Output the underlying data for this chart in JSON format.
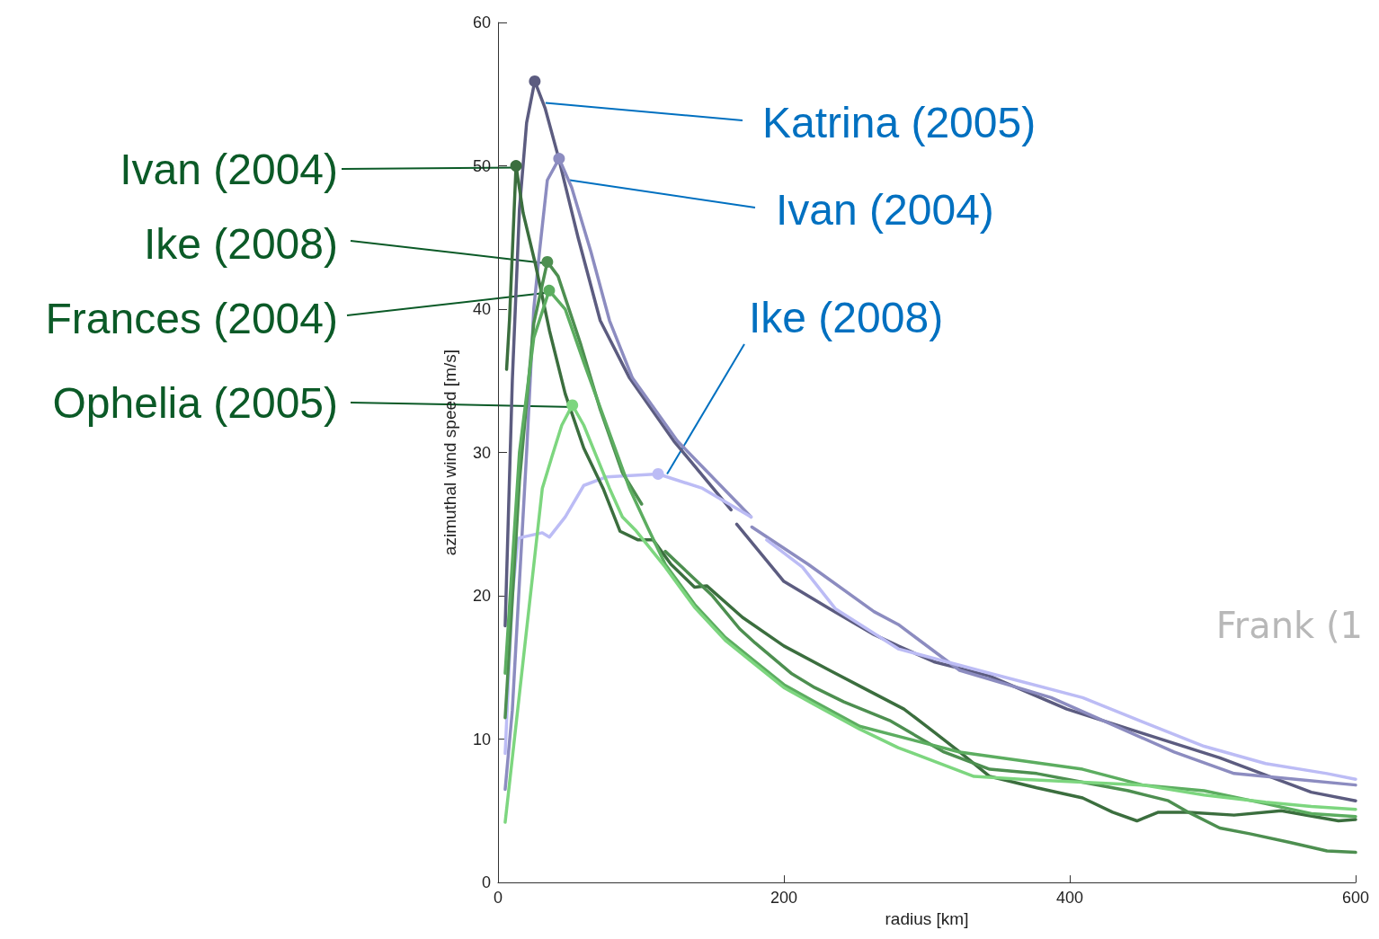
{
  "chart_data": {
    "type": "line",
    "xlabel": "radius [km]",
    "ylabel": "azimuthal wind speed [m/s]",
    "xlim": [
      0,
      600
    ],
    "xticks": [
      0,
      200,
      400,
      600
    ],
    "ylim": [
      0,
      60
    ],
    "yticks": [
      0,
      10,
      20,
      30,
      40,
      50,
      60
    ],
    "grid": false,
    "legend": false,
    "line_style": "solid",
    "annotations": [
      "Frank (1"
    ],
    "series": [
      {
        "name": "Katrina (2005)",
        "color": "#5c5c80",
        "x": [
          5,
          10,
          15,
          20,
          25.7,
          33,
          42,
          56,
          71.5,
          92,
          123,
          163,
          null,
          167,
          200,
          232,
          263,
          280,
          305,
          344,
          398,
          451,
          505,
          569,
          600
        ],
        "values": [
          17.9,
          35,
          47,
          53,
          55.9,
          54,
          50.7,
          45,
          39.2,
          35.2,
          30.8,
          26,
          null,
          25,
          21,
          19.1,
          17.3,
          16.5,
          15.4,
          14.4,
          12.1,
          10.4,
          8.7,
          6.3,
          5.7
        ]
      },
      {
        "name": "Ivan (2004)",
        "color": "#8c8cc0",
        "x": [
          5,
          10,
          20,
          25,
          29,
          34.5,
          42.7,
          51.5,
          65,
          78,
          94,
          125.5,
          177,
          null,
          177.6,
          217,
          263,
          280,
          323,
          387,
          430,
          473,
          515,
          558,
          600
        ],
        "values": [
          6.5,
          12,
          30,
          40,
          44,
          49,
          50.5,
          48.5,
          44,
          39.2,
          35.2,
          30.8,
          25.5,
          null,
          24.8,
          22.2,
          18.9,
          18,
          14.8,
          12.9,
          11,
          9.1,
          7.6,
          7.2,
          6.8
        ]
      },
      {
        "name": "Ike (2008)",
        "color": "#bcbcf5",
        "x": [
          5,
          10,
          14,
          17.6,
          31,
          36,
          47,
          60,
          76,
          112,
          143,
          177,
          null,
          188,
          213,
          236,
          280,
          344,
          409,
          451,
          494,
          537,
          580,
          600
        ],
        "values": [
          9,
          20,
          24,
          24.1,
          24.4,
          24.1,
          25.5,
          27.7,
          28.3,
          28.5,
          27.5,
          25.5,
          null,
          23.9,
          22,
          19.1,
          16.3,
          14.6,
          12.9,
          11.2,
          9.5,
          8.3,
          7.6,
          7.2
        ]
      },
      {
        "name": "Ivan (2004)",
        "color": "#3b6e3e",
        "x": [
          6,
          8,
          12.6,
          17.6,
          26,
          36,
          47,
          60,
          73.5,
          85.4,
          98,
          108.5,
          121,
          137.5,
          146,
          171,
          200,
          232,
          255,
          284,
          305,
          323,
          344,
          377,
          409,
          430,
          447,
          462,
          483,
          515,
          548,
          588,
          600
        ],
        "values": [
          35.8,
          39.2,
          50,
          46.7,
          43.2,
          38.5,
          34.1,
          30.3,
          27.5,
          24.5,
          23.9,
          23.9,
          22.2,
          20.6,
          20.7,
          18.5,
          16.5,
          14.8,
          13.6,
          12.1,
          10.5,
          9.1,
          7.4,
          6.6,
          5.9,
          4.9,
          4.3,
          4.9,
          4.9,
          4.7,
          5,
          4.3,
          4.4
        ]
      },
      {
        "name": "Ike (2008)",
        "color": "#4d8f50",
        "x": [
          5,
          15,
          25,
          34.5,
          42,
          58,
          71.5,
          87,
          100.5,
          null,
          117,
          150,
          169,
          180,
          205,
          221.5,
          242,
          274,
          312,
          344,
          377,
          409,
          441,
          469,
          483,
          505,
          526,
          554,
          580,
          600
        ],
        "values": [
          11.5,
          28,
          39,
          43.3,
          42.3,
          37.5,
          33,
          28.6,
          26.4,
          null,
          23.1,
          20,
          17.7,
          16.7,
          14.6,
          13.6,
          12.6,
          11.3,
          9.1,
          7.9,
          7.6,
          7,
          6.4,
          5.7,
          4.9,
          3.8,
          3.4,
          2.8,
          2.2,
          2.1
        ]
      },
      {
        "name": "Frances (2004)",
        "color": "#5cad60",
        "x": [
          5,
          15,
          25,
          35.8,
          47,
          60,
          76,
          92,
          105,
          117,
          137.5,
          159,
          180,
          200,
          221.5,
          253,
          280,
          323,
          366,
          409,
          451,
          494,
          537,
          569,
          600
        ],
        "values": [
          14.6,
          30,
          38,
          41.3,
          40,
          36.3,
          31.9,
          27.5,
          24.7,
          22.2,
          19.4,
          17.1,
          15.4,
          13.8,
          12.6,
          10.9,
          10.2,
          9.1,
          8.5,
          7.9,
          6.8,
          6.4,
          5.5,
          4.8,
          4.6
        ]
      },
      {
        "name": "Ophelia (2005)",
        "color": "#7dd67f",
        "x": [
          5,
          31,
          37.7,
          44.6,
          52,
          60,
          69,
          78,
          87,
          96,
          117,
          137.5,
          159,
          180,
          200,
          221.5,
          253,
          280,
          312,
          333,
          366,
          409,
          451,
          494,
          537,
          569,
          600
        ],
        "values": [
          4.2,
          27.5,
          29.7,
          31.9,
          33.3,
          31.9,
          29.7,
          27.5,
          25.5,
          24.6,
          22,
          19.2,
          16.9,
          15.2,
          13.6,
          12.4,
          10.7,
          9.4,
          8.2,
          7.4,
          7.2,
          7,
          6.8,
          6.1,
          5.6,
          5.3,
          5.1
        ]
      }
    ]
  }
}
